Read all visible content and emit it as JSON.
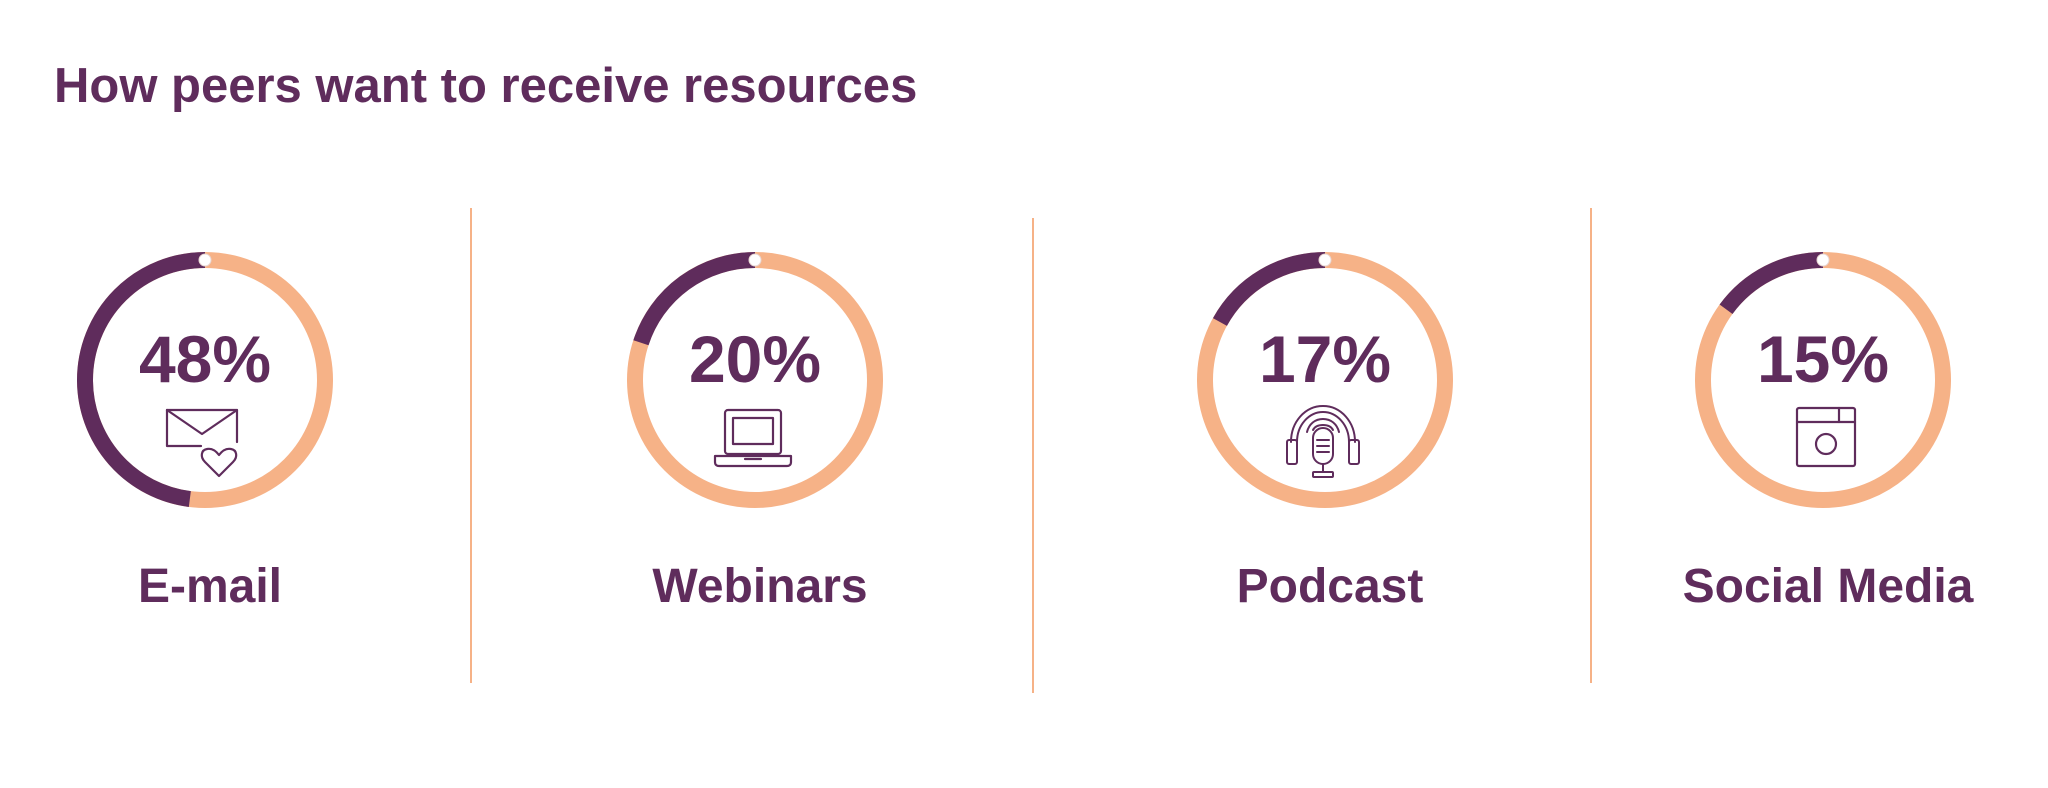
{
  "title": "How peers want to receive resources",
  "colors": {
    "primary": "#5f2c5c",
    "accent": "#f6b287"
  },
  "chart_data": {
    "type": "pie",
    "series": [
      {
        "category": "E-mail",
        "value": 48,
        "label": "48%",
        "icon": "email-heart-icon"
      },
      {
        "category": "Webinars",
        "value": 20,
        "label": "20%",
        "icon": "laptop-icon"
      },
      {
        "category": "Podcast",
        "value": 17,
        "label": "17%",
        "icon": "podcast-microphone-icon"
      },
      {
        "category": "Social Media",
        "value": 15,
        "label": "15%",
        "icon": "social-media-window-icon"
      }
    ]
  }
}
